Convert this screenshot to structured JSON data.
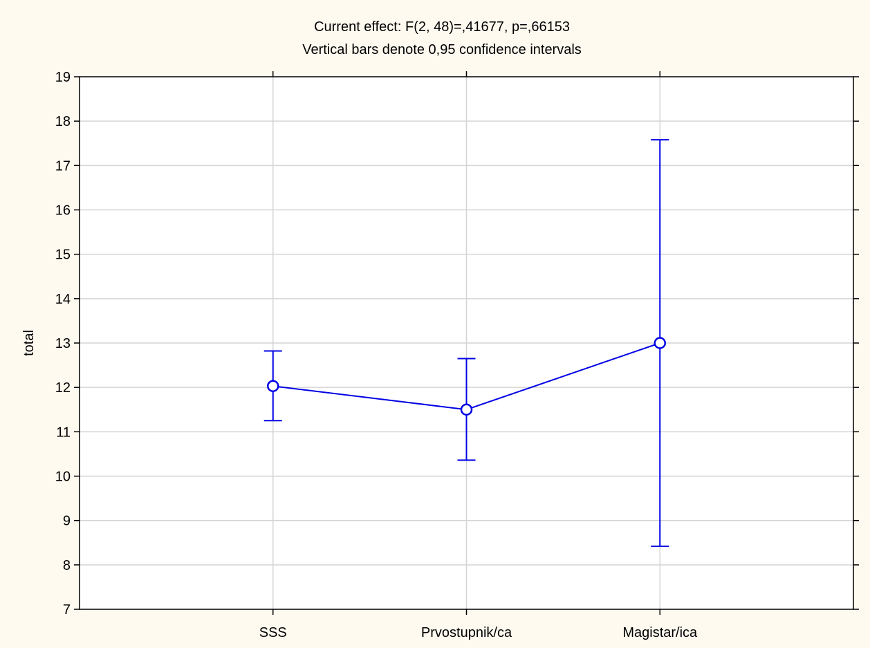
{
  "chart_data": {
    "type": "line",
    "title": "Current effect: F(2, 48)=,41677, p=,66153",
    "subtitle": "Vertical bars denote 0,95 confidence intervals",
    "xlabel": "",
    "ylabel": "total",
    "categories": [
      "SSS",
      "Prvostupnik/ca",
      "Magistar/ica"
    ],
    "series": [
      {
        "values": [
          12.03,
          11.5,
          13.0
        ],
        "ci_lower": [
          11.25,
          10.36,
          8.42
        ],
        "ci_upper": [
          12.82,
          12.65,
          17.58
        ]
      }
    ],
    "ylim": [
      7,
      19
    ],
    "yticks": [
      "7",
      "8",
      "9",
      "10",
      "11",
      "12",
      "13",
      "14",
      "15",
      "16",
      "17",
      "18",
      "19"
    ],
    "grid": true,
    "series_color": "#0000e6",
    "grid_color": "#d4d4d4",
    "plot_background": "#ffffff",
    "page_background": "#fffaf0"
  }
}
